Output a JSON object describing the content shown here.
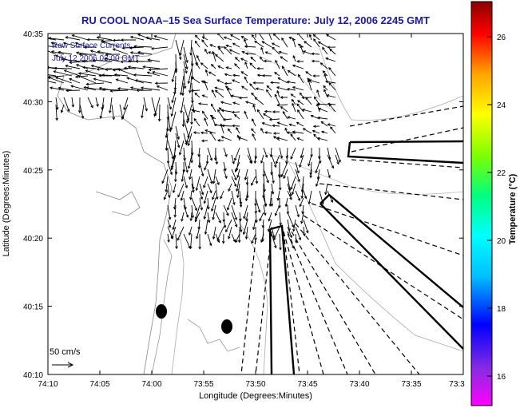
{
  "title": "RU COOL  NOAA–15  Sea Surface Temperature:  July 12, 2006 2245 GMT",
  "overlay": {
    "line1": "Raw Surface Currents",
    "line2": "July 12 2006 03:00 GMT"
  },
  "scale": {
    "label": "50 cm/s"
  },
  "axes": {
    "xlabel": "Longitude (Degrees:Minutes)",
    "ylabel": "Latitude (Degrees:Minutes)",
    "xticks": [
      "74:10",
      "74:05",
      "74:00",
      "73:55",
      "73:50",
      "73:45",
      "73:40",
      "73:35",
      "73:3"
    ],
    "yticks": [
      "40:35",
      "40:30",
      "40:25",
      "40:20",
      "40:15",
      "40:10"
    ]
  },
  "colorbar": {
    "label": "Temperature (°C)",
    "ticks": [
      "26",
      "24",
      "22",
      "20",
      "18",
      "16"
    ],
    "colors": [
      "#ff00ff",
      "#8a2be2",
      "#0000ff",
      "#00bfff",
      "#00ffff",
      "#00ff7f",
      "#7fff00",
      "#ffff00",
      "#ffa500",
      "#ff0000",
      "#8b0000"
    ]
  },
  "markers": [
    "buoy-marker-west",
    "buoy-marker-east"
  ]
}
